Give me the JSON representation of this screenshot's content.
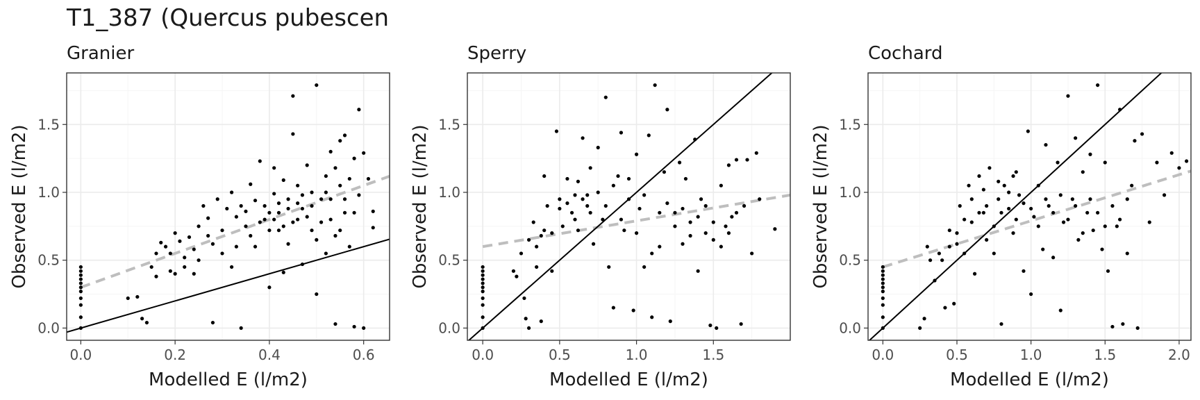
{
  "page_title": "T1_387 (Quercus pubescen",
  "colors": {
    "points": "#000000",
    "identity_line": "#000000",
    "fit_line": "#bebebe",
    "grid_major": "#ebebeb",
    "grid_minor": "#f5f5f5",
    "panel_border": "#333333"
  },
  "chart_data": [
    {
      "type": "scatter",
      "title": "Granier",
      "xlabel": "Modelled E (l/m2)",
      "ylabel": "Observed E (l/m2)",
      "xlim": [
        -0.03,
        0.655
      ],
      "ylim": [
        -0.09,
        1.88
      ],
      "xticks": [
        0.0,
        0.2,
        0.4,
        0.6
      ],
      "xtick_labels": [
        "0.0",
        "0.2",
        "0.4",
        "0.6"
      ],
      "yticks": [
        0.0,
        0.5,
        1.0,
        1.5
      ],
      "ytick_labels": [
        "0.0",
        "0.5",
        "1.0",
        "1.5"
      ],
      "grid": true,
      "identity_line": {
        "slope": 1.0,
        "intercept": 0.0
      },
      "fit_line": {
        "slope": 1.25,
        "intercept": 0.3
      },
      "points": [
        [
          0,
          0.0
        ],
        [
          0,
          0.08
        ],
        [
          0,
          0.17
        ],
        [
          0,
          0.22
        ],
        [
          0,
          0.27
        ],
        [
          0,
          0.3
        ],
        [
          0,
          0.33
        ],
        [
          0,
          0.36
        ],
        [
          0,
          0.39
        ],
        [
          0,
          0.42
        ],
        [
          0,
          0.45
        ],
        [
          0.1,
          0.22
        ],
        [
          0.12,
          0.23
        ],
        [
          0.13,
          0.07
        ],
        [
          0.14,
          0.04
        ],
        [
          0.15,
          0.45
        ],
        [
          0.16,
          0.38
        ],
        [
          0.16,
          0.55
        ],
        [
          0.17,
          0.63
        ],
        [
          0.18,
          0.6
        ],
        [
          0.19,
          0.55
        ],
        [
          0.19,
          0.42
        ],
        [
          0.2,
          0.7
        ],
        [
          0.21,
          0.64
        ],
        [
          0.22,
          0.52
        ],
        [
          0.23,
          0.67
        ],
        [
          0.24,
          0.4
        ],
        [
          0.24,
          0.58
        ],
        [
          0.25,
          0.75
        ],
        [
          0.26,
          0.9
        ],
        [
          0.27,
          0.81
        ],
        [
          0.28,
          0.04
        ],
        [
          0.28,
          0.62
        ],
        [
          0.29,
          0.95
        ],
        [
          0.3,
          0.72
        ],
        [
          0.31,
          0.88
        ],
        [
          0.32,
          1.0
        ],
        [
          0.33,
          0.6
        ],
        [
          0.34,
          0.0
        ],
        [
          0.35,
          0.86
        ],
        [
          0.35,
          0.75
        ],
        [
          0.36,
          1.06
        ],
        [
          0.37,
          0.94
        ],
        [
          0.38,
          0.78
        ],
        [
          0.38,
          1.23
        ],
        [
          0.39,
          0.9
        ],
        [
          0.4,
          0.3
        ],
        [
          0.4,
          0.85
        ],
        [
          0.41,
          1.18
        ],
        [
          0.41,
          0.99
        ],
        [
          0.42,
          0.72
        ],
        [
          0.42,
          0.92
        ],
        [
          0.43,
          0.41
        ],
        [
          0.43,
          1.09
        ],
        [
          0.44,
          0.62
        ],
        [
          0.44,
          0.95
        ],
        [
          0.45,
          1.43
        ],
        [
          0.45,
          1.71
        ],
        [
          0.46,
          0.8
        ],
        [
          0.46,
          1.05
        ],
        [
          0.47,
          0.47
        ],
        [
          0.47,
          0.88
        ],
        [
          0.48,
          1.2
        ],
        [
          0.49,
          0.72
        ],
        [
          0.49,
          1.0
        ],
        [
          0.5,
          0.25
        ],
        [
          0.5,
          1.79
        ],
        [
          0.51,
          0.95
        ],
        [
          0.52,
          1.12
        ],
        [
          0.52,
          0.55
        ],
        [
          0.53,
          0.8
        ],
        [
          0.53,
          1.3
        ],
        [
          0.54,
          0.03
        ],
        [
          0.54,
          0.68
        ],
        [
          0.55,
          1.38
        ],
        [
          0.55,
          1.05
        ],
        [
          0.56,
          0.85
        ],
        [
          0.56,
          1.42
        ],
        [
          0.57,
          0.6
        ],
        [
          0.58,
          1.25
        ],
        [
          0.58,
          0.01
        ],
        [
          0.59,
          1.61
        ],
        [
          0.6,
          0.0
        ],
        [
          0.6,
          1.29
        ],
        [
          0.61,
          1.1
        ],
        [
          0.62,
          0.86
        ],
        [
          0.62,
          0.74
        ],
        [
          0.2,
          0.4
        ],
        [
          0.22,
          0.45
        ],
        [
          0.25,
          0.5
        ],
        [
          0.27,
          0.68
        ],
        [
          0.3,
          0.55
        ],
        [
          0.32,
          0.45
        ],
        [
          0.33,
          0.82
        ],
        [
          0.34,
          0.9
        ],
        [
          0.36,
          0.68
        ],
        [
          0.37,
          0.6
        ],
        [
          0.39,
          0.8
        ],
        [
          0.4,
          0.72
        ],
        [
          0.41,
          0.8
        ],
        [
          0.42,
          0.85
        ],
        [
          0.43,
          0.75
        ],
        [
          0.44,
          0.88
        ],
        [
          0.45,
          0.78
        ],
        [
          0.46,
          0.92
        ],
        [
          0.47,
          0.98
        ],
        [
          0.48,
          0.82
        ],
        [
          0.49,
          0.9
        ],
        [
          0.5,
          0.65
        ],
        [
          0.51,
          0.78
        ],
        [
          0.52,
          1.0
        ],
        [
          0.53,
          0.95
        ],
        [
          0.54,
          1.18
        ],
        [
          0.55,
          0.72
        ],
        [
          0.56,
          0.95
        ],
        [
          0.57,
          1.1
        ],
        [
          0.58,
          0.85
        ],
        [
          0.59,
          0.98
        ]
      ]
    },
    {
      "type": "scatter",
      "title": "Sperry",
      "xlabel": "Modelled E (l/m2)",
      "ylabel": "Observed E (l/m2)",
      "xlim": [
        -0.1,
        2.0
      ],
      "ylim": [
        -0.09,
        1.88
      ],
      "xticks": [
        0.0,
        0.5,
        1.0,
        1.5
      ],
      "xtick_labels": [
        "0.0",
        "0.5",
        "1.0",
        "1.5"
      ],
      "yticks": [
        0.0,
        0.5,
        1.0,
        1.5
      ],
      "ytick_labels": [
        "0.0",
        "0.5",
        "1.0",
        "1.5"
      ],
      "grid": true,
      "identity_line": {
        "slope": 1.0,
        "intercept": 0.0
      },
      "fit_line": {
        "slope": 0.19,
        "intercept": 0.6
      },
      "points": [
        [
          0,
          0.0
        ],
        [
          0,
          0.08
        ],
        [
          0,
          0.17
        ],
        [
          0,
          0.22
        ],
        [
          0,
          0.27
        ],
        [
          0,
          0.3
        ],
        [
          0,
          0.33
        ],
        [
          0,
          0.36
        ],
        [
          0,
          0.39
        ],
        [
          0,
          0.42
        ],
        [
          0,
          0.45
        ],
        [
          0.2,
          0.42
        ],
        [
          0.22,
          0.38
        ],
        [
          0.25,
          0.55
        ],
        [
          0.27,
          0.22
        ],
        [
          0.28,
          0.07
        ],
        [
          0.3,
          0.0
        ],
        [
          0.3,
          0.65
        ],
        [
          0.33,
          0.78
        ],
        [
          0.35,
          0.45
        ],
        [
          0.38,
          0.05
        ],
        [
          0.4,
          1.12
        ],
        [
          0.42,
          0.9
        ],
        [
          0.45,
          0.42
        ],
        [
          0.48,
          1.45
        ],
        [
          0.5,
          0.95
        ],
        [
          0.52,
          0.75
        ],
        [
          0.55,
          1.1
        ],
        [
          0.58,
          0.85
        ],
        [
          0.6,
          0.98
        ],
        [
          0.62,
          0.72
        ],
        [
          0.65,
          1.4
        ],
        [
          0.68,
          0.9
        ],
        [
          0.7,
          1.18
        ],
        [
          0.72,
          0.62
        ],
        [
          0.75,
          1.33
        ],
        [
          0.78,
          0.8
        ],
        [
          0.8,
          1.7
        ],
        [
          0.82,
          0.45
        ],
        [
          0.85,
          0.15
        ],
        [
          0.88,
          1.12
        ],
        [
          0.9,
          1.44
        ],
        [
          0.92,
          0.72
        ],
        [
          0.95,
          0.95
        ],
        [
          0.98,
          0.13
        ],
        [
          1.0,
          1.28
        ],
        [
          1.02,
          0.88
        ],
        [
          1.05,
          0.45
        ],
        [
          1.08,
          1.42
        ],
        [
          1.1,
          0.08
        ],
        [
          1.12,
          1.79
        ],
        [
          1.15,
          0.6
        ],
        [
          1.18,
          1.15
        ],
        [
          1.2,
          1.61
        ],
        [
          1.22,
          0.05
        ],
        [
          1.25,
          0.85
        ],
        [
          1.28,
          1.22
        ],
        [
          1.3,
          0.62
        ],
        [
          1.32,
          1.1
        ],
        [
          1.35,
          0.78
        ],
        [
          1.38,
          1.39
        ],
        [
          1.4,
          0.42
        ],
        [
          1.42,
          0.95
        ],
        [
          1.45,
          0.7
        ],
        [
          1.48,
          0.02
        ],
        [
          1.5,
          0.65
        ],
        [
          1.52,
          0.0
        ],
        [
          1.55,
          1.05
        ],
        [
          1.58,
          0.75
        ],
        [
          1.6,
          1.2
        ],
        [
          1.62,
          0.82
        ],
        [
          1.65,
          1.24
        ],
        [
          1.68,
          0.03
        ],
        [
          1.7,
          0.9
        ],
        [
          1.72,
          1.24
        ],
        [
          1.75,
          0.55
        ],
        [
          1.78,
          1.29
        ],
        [
          1.8,
          0.95
        ],
        [
          1.9,
          0.73
        ],
        [
          0.45,
          0.7
        ],
        [
          0.5,
          0.88
        ],
        [
          0.55,
          0.92
        ],
        [
          0.6,
          0.8
        ],
        [
          0.65,
          0.95
        ],
        [
          0.7,
          0.85
        ],
        [
          0.75,
          1.0
        ],
        [
          0.8,
          0.9
        ],
        [
          0.85,
          1.05
        ],
        [
          0.9,
          0.8
        ],
        [
          0.95,
          1.1
        ],
        [
          1.0,
          0.7
        ],
        [
          1.05,
          0.98
        ],
        [
          1.1,
          0.55
        ],
        [
          1.15,
          0.85
        ],
        [
          1.2,
          0.92
        ],
        [
          1.25,
          0.75
        ],
        [
          1.3,
          0.88
        ],
        [
          1.35,
          0.68
        ],
        [
          1.4,
          0.82
        ],
        [
          1.45,
          0.9
        ],
        [
          1.5,
          0.78
        ],
        [
          1.55,
          0.6
        ],
        [
          1.6,
          0.7
        ],
        [
          1.65,
          0.85
        ],
        [
          0.35,
          0.6
        ],
        [
          0.4,
          0.72
        ],
        [
          0.38,
          0.68
        ],
        [
          0.62,
          1.08
        ],
        [
          0.68,
          0.98
        ]
      ]
    },
    {
      "type": "scatter",
      "title": "Cochard",
      "xlabel": "Modelled E (l/m2)",
      "ylabel": "Observed E (l/m2)",
      "xlim": [
        -0.1,
        2.08
      ],
      "ylim": [
        -0.09,
        1.88
      ],
      "xticks": [
        0.0,
        0.5,
        1.0,
        1.5,
        2.0
      ],
      "xtick_labels": [
        "0.0",
        "0.5",
        "1.0",
        "1.5",
        "2.0"
      ],
      "yticks": [
        0.0,
        0.5,
        1.0,
        1.5
      ],
      "ytick_labels": [
        "0.0",
        "0.5",
        "1.0",
        "1.5"
      ],
      "grid": true,
      "identity_line": {
        "slope": 1.0,
        "intercept": 0.0
      },
      "fit_line": {
        "slope": 0.34,
        "intercept": 0.45
      },
      "points": [
        [
          0,
          0.0
        ],
        [
          0,
          0.08
        ],
        [
          0,
          0.17
        ],
        [
          0,
          0.22
        ],
        [
          0,
          0.27
        ],
        [
          0,
          0.3
        ],
        [
          0,
          0.33
        ],
        [
          0,
          0.36
        ],
        [
          0,
          0.39
        ],
        [
          0,
          0.42
        ],
        [
          0,
          0.45
        ],
        [
          0.25,
          0.0
        ],
        [
          0.28,
          0.07
        ],
        [
          0.3,
          0.6
        ],
        [
          0.35,
          0.35
        ],
        [
          0.4,
          0.5
        ],
        [
          0.42,
          0.15
        ],
        [
          0.45,
          0.72
        ],
        [
          0.48,
          0.18
        ],
        [
          0.5,
          0.62
        ],
        [
          0.52,
          0.9
        ],
        [
          0.55,
          0.55
        ],
        [
          0.58,
          1.05
        ],
        [
          0.6,
          0.78
        ],
        [
          0.62,
          0.4
        ],
        [
          0.65,
          1.12
        ],
        [
          0.68,
          0.85
        ],
        [
          0.7,
          0.65
        ],
        [
          0.72,
          1.18
        ],
        [
          0.75,
          0.55
        ],
        [
          0.78,
          0.95
        ],
        [
          0.8,
          0.03
        ],
        [
          0.82,
          1.05
        ],
        [
          0.85,
          0.88
        ],
        [
          0.88,
          0.7
        ],
        [
          0.9,
          1.15
        ],
        [
          0.92,
          0.98
        ],
        [
          0.95,
          0.42
        ],
        [
          0.98,
          1.45
        ],
        [
          1.0,
          0.25
        ],
        [
          1.02,
          0.82
        ],
        [
          1.05,
          1.05
        ],
        [
          1.08,
          0.58
        ],
        [
          1.1,
          1.35
        ],
        [
          1.12,
          0.9
        ],
        [
          1.15,
          0.52
        ],
        [
          1.18,
          1.22
        ],
        [
          1.2,
          0.13
        ],
        [
          1.22,
          0.78
        ],
        [
          1.25,
          1.71
        ],
        [
          1.28,
          0.95
        ],
        [
          1.3,
          1.4
        ],
        [
          1.32,
          0.65
        ],
        [
          1.35,
          1.15
        ],
        [
          1.38,
          0.85
        ],
        [
          1.4,
          1.28
        ],
        [
          1.42,
          0.72
        ],
        [
          1.45,
          1.79
        ],
        [
          1.48,
          0.58
        ],
        [
          1.5,
          1.22
        ],
        [
          1.52,
          0.42
        ],
        [
          1.55,
          0.01
        ],
        [
          1.58,
          0.75
        ],
        [
          1.6,
          1.61
        ],
        [
          1.62,
          0.03
        ],
        [
          1.65,
          0.55
        ],
        [
          1.68,
          1.05
        ],
        [
          1.7,
          1.38
        ],
        [
          1.72,
          0.0
        ],
        [
          1.75,
          1.43
        ],
        [
          1.8,
          0.78
        ],
        [
          1.85,
          1.22
        ],
        [
          1.9,
          0.98
        ],
        [
          1.95,
          1.29
        ],
        [
          2.0,
          1.18
        ],
        [
          2.05,
          1.23
        ],
        [
          0.55,
          0.8
        ],
        [
          0.6,
          0.95
        ],
        [
          0.65,
          0.85
        ],
        [
          0.7,
          0.9
        ],
        [
          0.75,
          0.75
        ],
        [
          0.8,
          0.85
        ],
        [
          0.85,
          1.0
        ],
        [
          0.9,
          0.8
        ],
        [
          0.95,
          0.92
        ],
        [
          1.0,
          0.88
        ],
        [
          1.05,
          0.75
        ],
        [
          1.1,
          0.95
        ],
        [
          1.15,
          0.85
        ],
        [
          1.2,
          0.98
        ],
        [
          1.25,
          0.8
        ],
        [
          1.3,
          0.9
        ],
        [
          1.35,
          0.7
        ],
        [
          1.4,
          0.95
        ],
        [
          1.45,
          0.85
        ],
        [
          1.5,
          0.75
        ],
        [
          1.55,
          0.9
        ],
        [
          1.6,
          0.8
        ],
        [
          1.65,
          0.95
        ],
        [
          0.45,
          0.6
        ],
        [
          0.5,
          0.7
        ],
        [
          0.38,
          0.55
        ],
        [
          0.32,
          0.5
        ],
        [
          0.68,
          1.02
        ],
        [
          0.78,
          1.08
        ],
        [
          0.88,
          1.12
        ]
      ]
    }
  ]
}
